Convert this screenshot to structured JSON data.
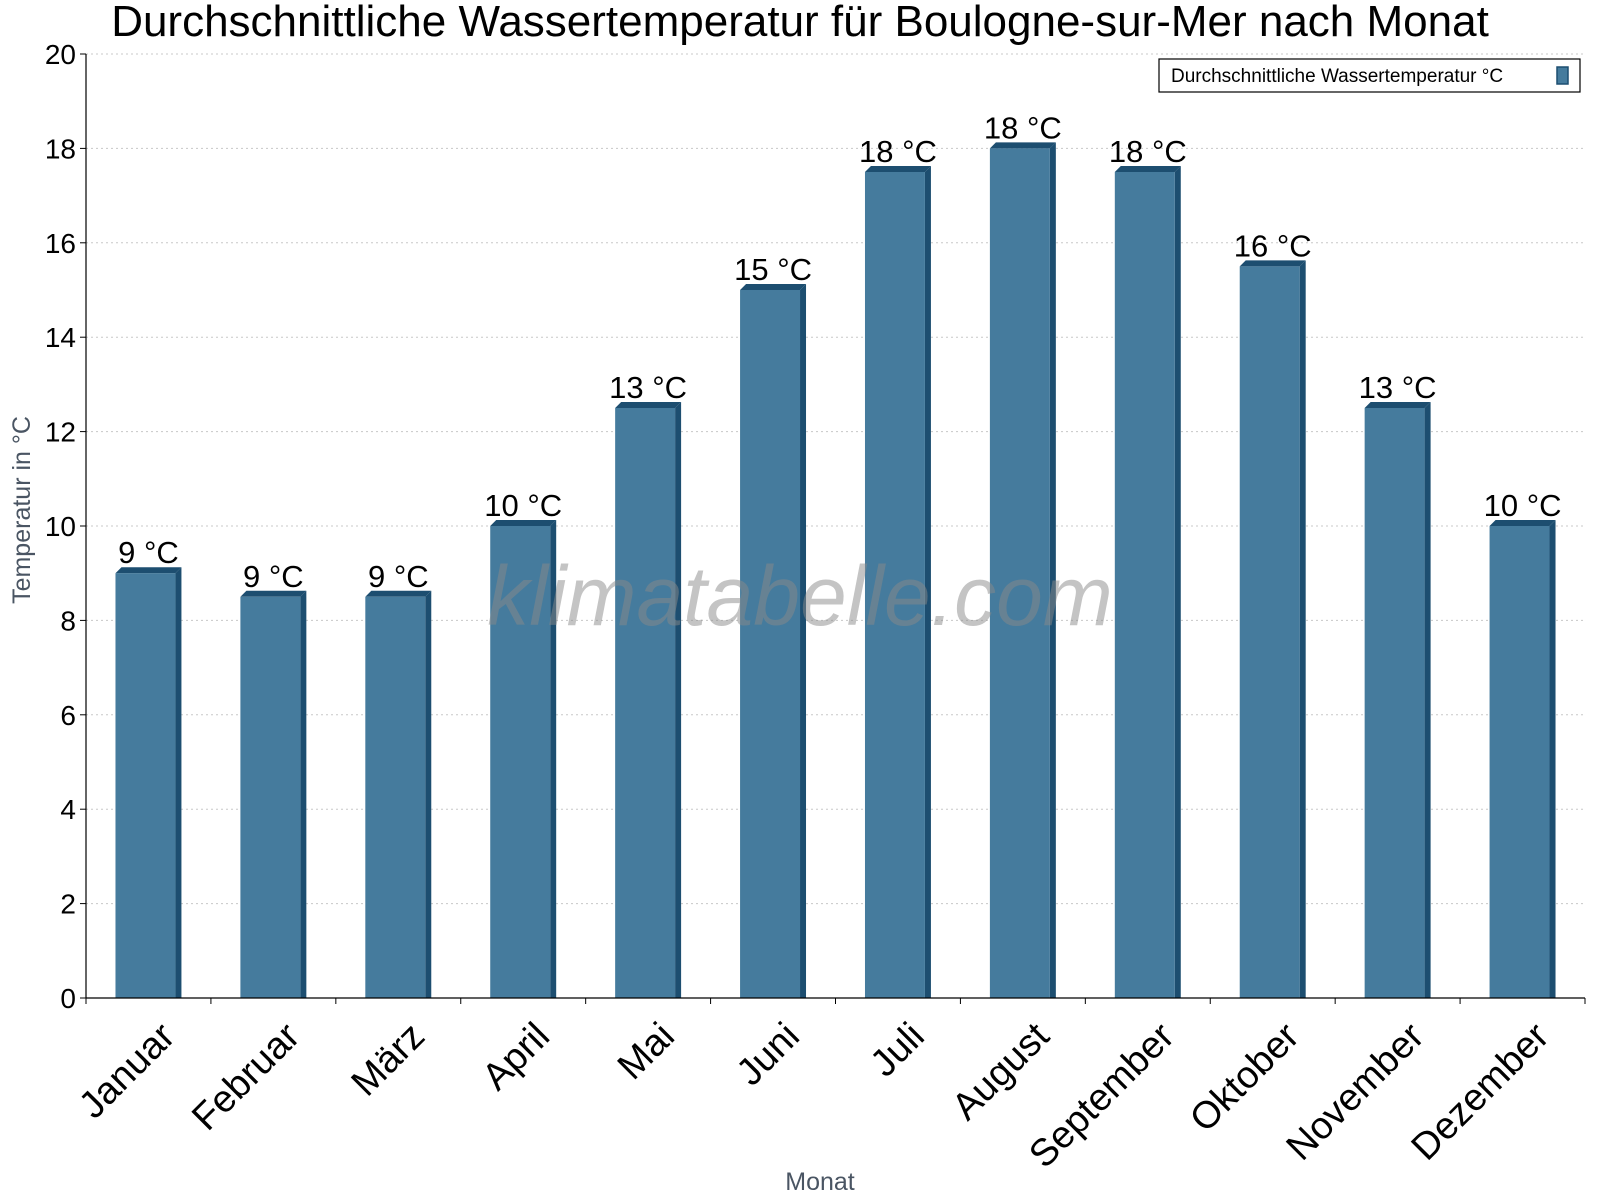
{
  "chart_data": {
    "type": "bar",
    "title": "Durchschnittliche Wassertemperatur für Boulogne-sur-Mer nach Monat",
    "xlabel": "Monat",
    "ylabel": "Temperatur in °C",
    "ylim": [
      0,
      20
    ],
    "yticks": [
      0,
      2,
      4,
      6,
      8,
      10,
      12,
      14,
      16,
      18,
      20
    ],
    "grid": true,
    "legend_position": "top-right",
    "categories": [
      "Januar",
      "Februar",
      "März",
      "April",
      "Mai",
      "Juni",
      "Juli",
      "August",
      "September",
      "Oktober",
      "November",
      "Dezember"
    ],
    "series": [
      {
        "name": "Durchschnittliche Wassertemperatur °C",
        "values": [
          9,
          8.5,
          8.5,
          10,
          12.5,
          15,
          17.5,
          18,
          17.5,
          15.5,
          12.5,
          10
        ],
        "labels": [
          "9 °C",
          "9 °C",
          "9 °C",
          "10 °C",
          "13 °C",
          "15 °C",
          "18 °C",
          "18 °C",
          "18 °C",
          "16 °C",
          "13 °C",
          "10 °C"
        ],
        "color": "#457b9d",
        "edge_color": "#1d4e70"
      }
    ],
    "watermark": "klimatabelle.com"
  }
}
